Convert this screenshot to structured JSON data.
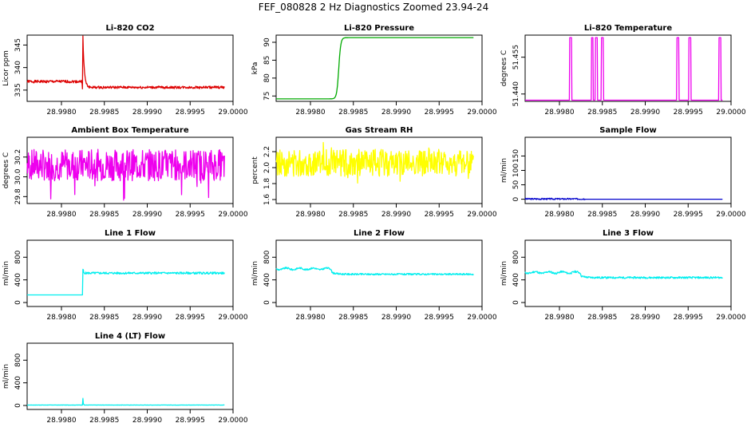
{
  "page": {
    "title": "FEF_080828  2 Hz Diagnostics Zoomed 23.94-24"
  },
  "colors": {
    "frame": "#000000"
  },
  "chart_data": [
    {
      "id": "co2",
      "type": "line",
      "title": "Li-820 CO2",
      "ylabel": "Licor ppm",
      "color": "#dd0000",
      "xlim": [
        28.9976,
        29.0
      ],
      "ylim": [
        332.5,
        347.2
      ],
      "xticks": [
        "28.9980",
        "28.9985",
        "28.9990",
        "28.9995",
        "29.0000"
      ],
      "yticks": [
        "335",
        "340",
        "345"
      ],
      "pattern": "co2",
      "params": {
        "x0": 28.9976,
        "x1": 28.9999,
        "base1": 336.9,
        "spike_x": 28.99825,
        "low": 332.6,
        "high": 347.0,
        "base2": 335.6
      }
    },
    {
      "id": "pressure",
      "type": "line",
      "title": "Li-820 Pressure",
      "ylabel": "kPa",
      "color": "#00aa00",
      "xlim": [
        28.9976,
        29.0
      ],
      "ylim": [
        73.5,
        92.0
      ],
      "xticks": [
        "28.9980",
        "28.9985",
        "28.9990",
        "28.9995",
        "29.0000"
      ],
      "yticks": [
        "75",
        "80",
        "85",
        "90"
      ],
      "pattern": "sigmoid",
      "params": {
        "x0": 28.9976,
        "x1": 28.9999,
        "low": 74.2,
        "high": 91.3,
        "mid": 28.99833,
        "width": 1.2e-05
      }
    },
    {
      "id": "temperature",
      "type": "line",
      "title": "Li-820 Temperature",
      "ylabel": "degrees C",
      "color": "#ee00ee",
      "xlim": [
        28.9976,
        29.0
      ],
      "ylim": [
        51.437,
        51.464
      ],
      "xticks": [
        "28.9980",
        "28.9985",
        "28.9990",
        "28.9995",
        "29.0000"
      ],
      "yticks": [
        "51.440",
        "51.455"
      ],
      "pattern": "steps",
      "params": {
        "x0": 28.9976,
        "x1": 28.9999,
        "low": 51.4375,
        "high": 51.463,
        "pulses": [
          [
            28.99812,
            28.99814
          ],
          [
            28.99837,
            28.99839
          ],
          [
            28.99842,
            28.99844
          ],
          [
            28.99849,
            28.99851
          ],
          [
            28.99937,
            28.99939
          ],
          [
            28.99951,
            28.99953
          ],
          [
            28.99986,
            28.99988
          ],
          [
            28.99991,
            28.99993
          ]
        ]
      }
    },
    {
      "id": "ambient",
      "type": "line",
      "title": "Ambient Box Temperature",
      "ylabel": "degrees C",
      "color": "#ee00ee",
      "xlim": [
        28.9976,
        29.0
      ],
      "ylim": [
        29.73,
        30.4
      ],
      "xticks": [
        "28.9980",
        "28.9985",
        "28.9990",
        "28.9995",
        "29.0000"
      ],
      "yticks": [
        "29.8",
        "30.0",
        "30.2"
      ],
      "pattern": "noise",
      "params": {
        "x0": 28.9976,
        "x1": 28.9999,
        "mean": 30.12,
        "amp": 0.16,
        "min": 29.75,
        "max": 30.37,
        "seed": 7
      }
    },
    {
      "id": "rh",
      "type": "line",
      "title": "Gas Stream RH",
      "ylabel": "percent",
      "color": "#ffff00",
      "xlim": [
        28.9976,
        29.0
      ],
      "ylim": [
        1.55,
        2.38
      ],
      "xticks": [
        "28.9980",
        "28.9985",
        "28.9990",
        "28.9995",
        "29.0000"
      ],
      "yticks": [
        "1.6",
        "1.8",
        "2.0",
        "2.2"
      ],
      "pattern": "noise",
      "params": {
        "x0": 28.9976,
        "x1": 28.9999,
        "mean": 2.06,
        "amp": 0.17,
        "min": 1.6,
        "max": 2.33,
        "seed": 13
      }
    },
    {
      "id": "sample_flow",
      "type": "line",
      "title": "Sample Flow",
      "ylabel": "ml/min",
      "color": "#0000cc",
      "xlim": [
        28.9976,
        29.0
      ],
      "ylim": [
        -15,
        215
      ],
      "xticks": [
        "28.9980",
        "28.9985",
        "28.9990",
        "28.9995",
        "29.0000"
      ],
      "yticks": [
        "0",
        "50",
        "100",
        "150"
      ],
      "pattern": "flat",
      "params": {
        "x0": 28.9976,
        "x1": 28.9999,
        "mean": 1,
        "amp": 2.5,
        "seed": 3,
        "until": 28.9983
      }
    },
    {
      "id": "line1",
      "type": "line",
      "title": "Line 1 Flow",
      "ylabel": "ml/min",
      "color": "#00eeee",
      "xlim": [
        28.9976,
        29.0
      ],
      "ylim": [
        -70,
        1100
      ],
      "xticks": [
        "28.9980",
        "28.9985",
        "28.9990",
        "28.9995",
        "29.0000"
      ],
      "yticks": [
        "0",
        "400",
        "800"
      ],
      "pattern": "step",
      "params": {
        "x0": 28.9976,
        "x1": 28.9999,
        "before": 135,
        "step_x": 28.99825,
        "peak": 580,
        "after": 520,
        "amp": 18,
        "seed": 5
      }
    },
    {
      "id": "line2",
      "type": "line",
      "title": "Line 2 Flow",
      "ylabel": "ml/min",
      "color": "#00eeee",
      "xlim": [
        28.9976,
        29.0
      ],
      "ylim": [
        -70,
        1100
      ],
      "xticks": [
        "28.9980",
        "28.9985",
        "28.9990",
        "28.9995",
        "29.0000"
      ],
      "yticks": [
        "0",
        "400",
        "800"
      ],
      "pattern": "wavy",
      "params": {
        "x0": 28.9976,
        "x1": 28.9999,
        "start": 595,
        "end": 500,
        "drop_x": 28.99825,
        "amp": 14,
        "seed": 9
      }
    },
    {
      "id": "line3",
      "type": "line",
      "title": "Line 3 Flow",
      "ylabel": "ml/min",
      "color": "#00eeee",
      "xlim": [
        28.9976,
        29.0
      ],
      "ylim": [
        -70,
        1100
      ],
      "xticks": [
        "28.9980",
        "28.9985",
        "28.9990",
        "28.9995",
        "29.0000"
      ],
      "yticks": [
        "0",
        "400",
        "800"
      ],
      "pattern": "wavy",
      "params": {
        "x0": 28.9976,
        "x1": 28.9999,
        "start": 530,
        "end": 440,
        "drop_x": 28.99825,
        "amp": 16,
        "seed": 11
      }
    },
    {
      "id": "line4",
      "type": "line",
      "title": "Line 4 (LT) Flow",
      "ylabel": "ml/min",
      "color": "#00eeee",
      "xlim": [
        28.9976,
        29.0
      ],
      "ylim": [
        -70,
        1100
      ],
      "xticks": [
        "28.9980",
        "28.9985",
        "28.9990",
        "28.9995",
        "29.0000"
      ],
      "yticks": [
        "0",
        "400",
        "800"
      ],
      "pattern": "blip",
      "params": {
        "x0": 28.9976,
        "x1": 28.9999,
        "base": 8,
        "blip_x": 28.99825,
        "peak": 125,
        "amp": 3,
        "seed": 17
      }
    }
  ]
}
